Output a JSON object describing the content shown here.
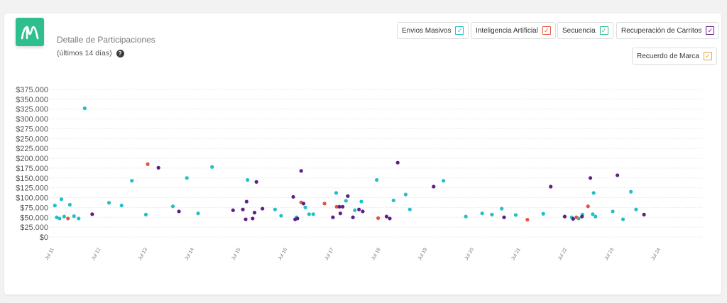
{
  "header": {
    "title": "Detalle de Participaciones",
    "subtitle": "(últimos 14 días)",
    "help_glyph": "?"
  },
  "legend": [
    {
      "label": "Envios Masivos",
      "color": "#20c0c8"
    },
    {
      "label": "Inteligencia Artificial",
      "color": "#e8523c"
    },
    {
      "label": "Secuencia",
      "color": "#2fbf8f"
    },
    {
      "label": "Recuperación de Carritos",
      "color": "#5e1f86"
    },
    {
      "label": "Recuerdo de Marca",
      "color": "#f0a030"
    }
  ],
  "chart_data": {
    "type": "scatter",
    "title": "Detalle de Participaciones",
    "subtitle": "(últimos 14 días)",
    "ylim": [
      0,
      375000
    ],
    "y_ticks": [
      "$0",
      "$25.000",
      "$50.000",
      "$75.000",
      "$100.000",
      "$125.000",
      "$150.000",
      "$175.000",
      "$200.000",
      "$225.000",
      "$250.000",
      "$275.000",
      "$300.000",
      "$325.000",
      "$350.000",
      "$375.000"
    ],
    "x_ticks": [
      "Jul 11",
      "Jul 12",
      "Jul 13",
      "Jul 14",
      "Jul 15",
      "Jul 16",
      "Jul 17",
      "Jul 18",
      "Jul 19",
      "Jul 20",
      "Jul 21",
      "Jul 22",
      "Jul 23",
      "Jul 24"
    ],
    "grid": true,
    "legend_position": "top-right",
    "series": [
      {
        "name": "Envios Masivos",
        "color": "#20c0c8",
        "points": [
          [
            11.02,
            80000
          ],
          [
            11.06,
            50000
          ],
          [
            11.12,
            47000
          ],
          [
            11.16,
            96000
          ],
          [
            11.22,
            52000
          ],
          [
            11.34,
            82000
          ],
          [
            11.43,
            53000
          ],
          [
            11.53,
            47000
          ],
          [
            11.66,
            327000
          ],
          [
            12.18,
            87000
          ],
          [
            12.45,
            80000
          ],
          [
            12.67,
            143000
          ],
          [
            12.97,
            57000
          ],
          [
            13.55,
            78000
          ],
          [
            13.85,
            150000
          ],
          [
            14.09,
            60000
          ],
          [
            14.39,
            178000
          ],
          [
            15.15,
            145000
          ],
          [
            15.74,
            70000
          ],
          [
            15.87,
            54000
          ],
          [
            16.2,
            50000
          ],
          [
            16.39,
            75000
          ],
          [
            16.47,
            58000
          ],
          [
            16.56,
            58000
          ],
          [
            17.05,
            112000
          ],
          [
            17.26,
            92000
          ],
          [
            17.45,
            68000
          ],
          [
            17.59,
            90000
          ],
          [
            17.92,
            145000
          ],
          [
            18.28,
            93000
          ],
          [
            18.54,
            108000
          ],
          [
            18.63,
            70000
          ],
          [
            19.35,
            143000
          ],
          [
            19.83,
            52000
          ],
          [
            20.18,
            60000
          ],
          [
            20.39,
            57000
          ],
          [
            20.6,
            72000
          ],
          [
            20.9,
            56000
          ],
          [
            21.49,
            59000
          ],
          [
            22.1,
            50000
          ],
          [
            22.33,
            57000
          ],
          [
            22.55,
            58000
          ],
          [
            22.57,
            112000
          ],
          [
            22.61,
            52000
          ],
          [
            22.98,
            65000
          ],
          [
            23.2,
            45000
          ],
          [
            23.37,
            115000
          ],
          [
            23.48,
            70000
          ]
        ]
      },
      {
        "name": "Inteligencia Artificial",
        "color": "#e8523c",
        "points": [
          [
            11.3,
            47000
          ],
          [
            13.01,
            185000
          ],
          [
            16.3,
            88000
          ],
          [
            16.8,
            85000
          ],
          [
            17.06,
            77000
          ],
          [
            17.95,
            48000
          ],
          [
            21.15,
            44000
          ],
          [
            22.2,
            50000
          ],
          [
            22.45,
            78000
          ]
        ]
      },
      {
        "name": "Secuencia",
        "color": "#2fbf8f",
        "points": [
          [
            22.25,
            47000
          ]
        ]
      },
      {
        "name": "Recuperación de Carritos",
        "color": "#5e1f86",
        "points": [
          [
            11.82,
            58000
          ],
          [
            13.24,
            176000
          ],
          [
            13.68,
            65000
          ],
          [
            14.84,
            68000
          ],
          [
            15.05,
            70000
          ],
          [
            15.11,
            45000
          ],
          [
            15.13,
            90000
          ],
          [
            15.26,
            47000
          ],
          [
            15.3,
            62000
          ],
          [
            15.34,
            140000
          ],
          [
            15.47,
            72000
          ],
          [
            16.13,
            102000
          ],
          [
            16.17,
            45000
          ],
          [
            16.22,
            47000
          ],
          [
            16.3,
            168000
          ],
          [
            16.35,
            85000
          ],
          [
            16.98,
            50000
          ],
          [
            17.12,
            77000
          ],
          [
            17.14,
            60000
          ],
          [
            17.19,
            77000
          ],
          [
            17.3,
            104000
          ],
          [
            17.41,
            50000
          ],
          [
            17.54,
            70000
          ],
          [
            17.62,
            65000
          ],
          [
            18.13,
            52000
          ],
          [
            18.2,
            47000
          ],
          [
            18.37,
            189000
          ],
          [
            19.14,
            128000
          ],
          [
            20.65,
            50000
          ],
          [
            21.65,
            128000
          ],
          [
            21.95,
            52000
          ],
          [
            22.13,
            46000
          ],
          [
            22.32,
            52000
          ],
          [
            22.5,
            150000
          ],
          [
            23.08,
            157000
          ],
          [
            23.65,
            57000
          ]
        ]
      },
      {
        "name": "Recuerdo de Marca",
        "color": "#f0a030",
        "points": []
      }
    ]
  }
}
